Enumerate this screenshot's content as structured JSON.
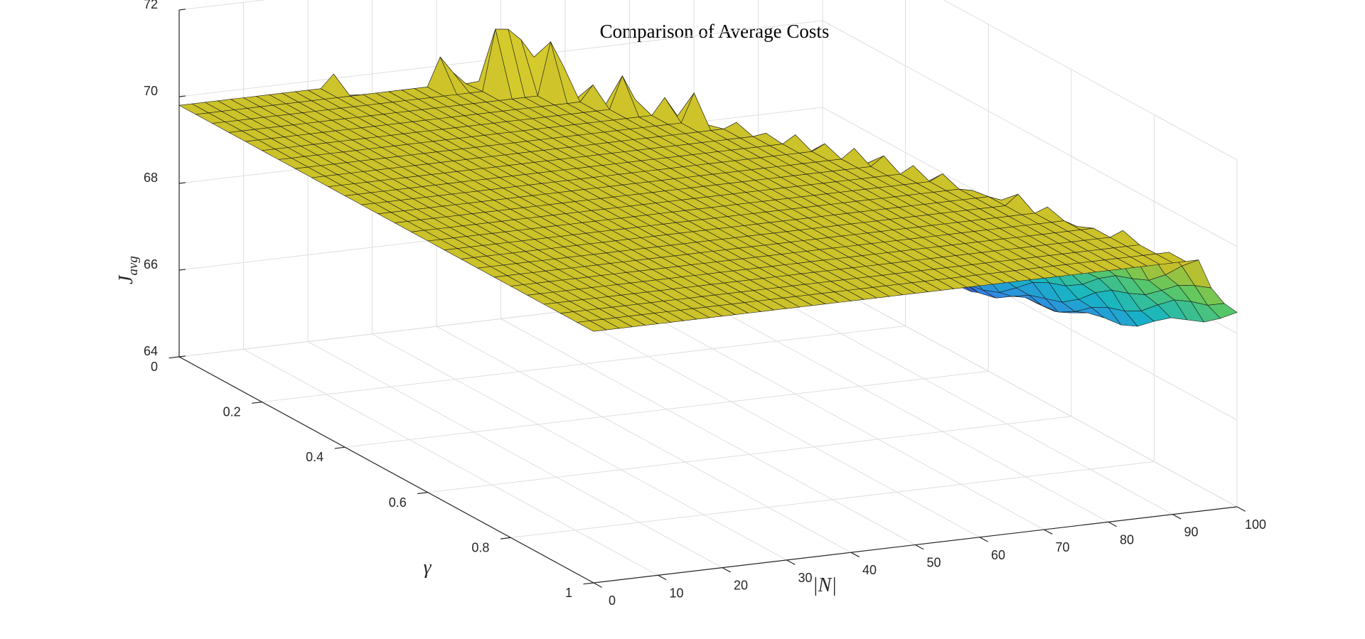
{
  "chart_data": {
    "type": "surface",
    "title": "Comparison of Average Costs",
    "xlabel": "|N|",
    "ylabel": "γ",
    "zlabel_main": "J",
    "zlabel_sub": "avg",
    "xlim": [
      0,
      100
    ],
    "ylim": [
      0,
      1
    ],
    "zlim": [
      64,
      72
    ],
    "xticks": [
      "0",
      "10",
      "20",
      "30",
      "40",
      "50",
      "60",
      "70",
      "80",
      "90",
      "100"
    ],
    "yticks": [
      "0",
      "0.2",
      "0.4",
      "0.6",
      "0.8",
      "1"
    ],
    "zticks": [
      "64",
      "66",
      "68",
      "70",
      "72"
    ],
    "grid": true,
    "colormap": "parula",
    "grid_size": {
      "x_points": 51,
      "y_points": 26
    },
    "plateau_value": 69.8,
    "notes_surface": {
      "flat_region": "J_avg ≈ 69.8 for small |N| (left half)",
      "peak_region": "J_avg rises to ≈ 72 near |N| ≈ 45–55, γ ≈ 0–0.1",
      "valley_region": "J_avg falls to ≈ 64.5 for large |N| and γ ≈ 1"
    },
    "colors": {
      "low": "#3e26a8",
      "mid_low": "#3a7af0",
      "mid": "#16b6c4",
      "mid_high": "#5fc85f",
      "high": "#c8be28"
    }
  }
}
